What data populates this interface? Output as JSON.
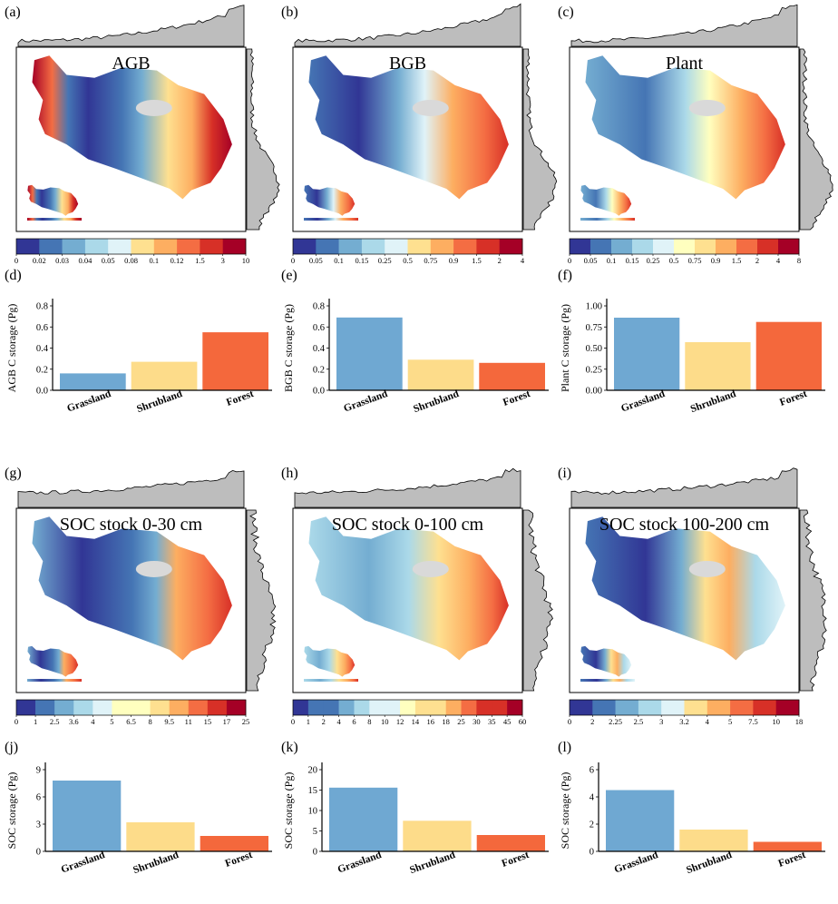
{
  "panels": {
    "maps": [
      {
        "letter": "(a)",
        "title": "AGB",
        "colorbar_ticks": [
          "0",
          "0.02",
          "0.03",
          "0.04",
          "0.05",
          "0.08",
          "0.1",
          "0.12",
          "1.5",
          "3",
          "10"
        ]
      },
      {
        "letter": "(b)",
        "title": "BGB",
        "colorbar_ticks": [
          "0",
          "0.05",
          "0.1",
          "0.15",
          "0.25",
          "0.5",
          "0.75",
          "0.9",
          "1.5",
          "2",
          "4"
        ]
      },
      {
        "letter": "(c)",
        "title": "Plant",
        "colorbar_ticks": [
          "0",
          "0.05",
          "0.1",
          "0.15",
          "0.25",
          "0.5",
          "0.75",
          "0.9",
          "1.5",
          "2",
          "4",
          "8"
        ]
      },
      {
        "letter": "(g)",
        "title": "SOC stock 0-30 cm",
        "colorbar_ticks": [
          "0",
          "1",
          "2.5",
          "3.6",
          "4",
          "5",
          "6.5",
          "8",
          "9.5",
          "11",
          "15",
          "17",
          "25"
        ]
      },
      {
        "letter": "(h)",
        "title": "SOC stock 0-100 cm",
        "colorbar_ticks": [
          "0",
          "1",
          "2",
          "4",
          "6",
          "8",
          "10",
          "12",
          "14",
          "16",
          "18",
          "25",
          "30",
          "35",
          "45",
          "60"
        ]
      },
      {
        "letter": "(i)",
        "title": "SOC stock 100-200 cm",
        "colorbar_ticks": [
          "0",
          "2",
          "2.25",
          "2.5",
          "3",
          "3.2",
          "4",
          "5",
          "7.5",
          "10",
          "18"
        ]
      }
    ]
  },
  "colors": {
    "grassland": "#6fa8d2",
    "shrubland": "#fddc8a",
    "forest": "#f4683c",
    "profile_fill": "#bdbdbd",
    "colorbar_11": [
      "#313695",
      "#4575b4",
      "#74add1",
      "#abd9e9",
      "#e0f3f8",
      "#ffffbf",
      "#fee090",
      "#fdae61",
      "#f46d43",
      "#d73027",
      "#a50026"
    ]
  },
  "chart_data": [
    {
      "type": "bar",
      "panel": "(d)",
      "ylabel": "AGB C storage (Pg)",
      "categories": [
        "Grassland",
        "Shrubland",
        "Forest"
      ],
      "values": [
        0.16,
        0.27,
        0.55
      ],
      "yticks": [
        "0.0",
        "0.2",
        "0.4",
        "0.6",
        "0.8"
      ],
      "ylim": [
        0,
        0.8
      ]
    },
    {
      "type": "bar",
      "panel": "(e)",
      "ylabel": "BGB C storage (Pg)",
      "categories": [
        "Grassland",
        "Shrubland",
        "Forest"
      ],
      "values": [
        0.69,
        0.29,
        0.26
      ],
      "yticks": [
        "0.0",
        "0.2",
        "0.4",
        "0.6",
        "0.8"
      ],
      "ylim": [
        0,
        0.8
      ]
    },
    {
      "type": "bar",
      "panel": "(f)",
      "ylabel": "Plant C storage (Pg)",
      "categories": [
        "Grassland",
        "Shrubland",
        "Forest"
      ],
      "values": [
        0.86,
        0.57,
        0.81
      ],
      "yticks": [
        "0.00",
        "0.25",
        "0.50",
        "0.75",
        "1.00"
      ],
      "ylim": [
        0,
        1.0
      ]
    },
    {
      "type": "bar",
      "panel": "(j)",
      "ylabel": "SOC storage (Pg)",
      "categories": [
        "Grassland",
        "Shrubland",
        "Forest"
      ],
      "values": [
        7.8,
        3.2,
        1.7
      ],
      "yticks": [
        "0",
        "3",
        "6",
        "9"
      ],
      "ylim": [
        0,
        9
      ]
    },
    {
      "type": "bar",
      "panel": "(k)",
      "ylabel": "SOC storage (Pg)",
      "categories": [
        "Grassland",
        "Shrubland",
        "Forest"
      ],
      "values": [
        15.6,
        7.5,
        4.0
      ],
      "yticks": [
        "0",
        "5",
        "10",
        "15",
        "20"
      ],
      "ylim": [
        0,
        20
      ]
    },
    {
      "type": "bar",
      "panel": "(l)",
      "ylabel": "SOC storage (Pg)",
      "categories": [
        "Grassland",
        "Shrubland",
        "Forest"
      ],
      "values": [
        4.5,
        1.6,
        0.7
      ],
      "yticks": [
        "0",
        "2",
        "4",
        "6"
      ],
      "ylim": [
        0,
        6
      ]
    }
  ]
}
